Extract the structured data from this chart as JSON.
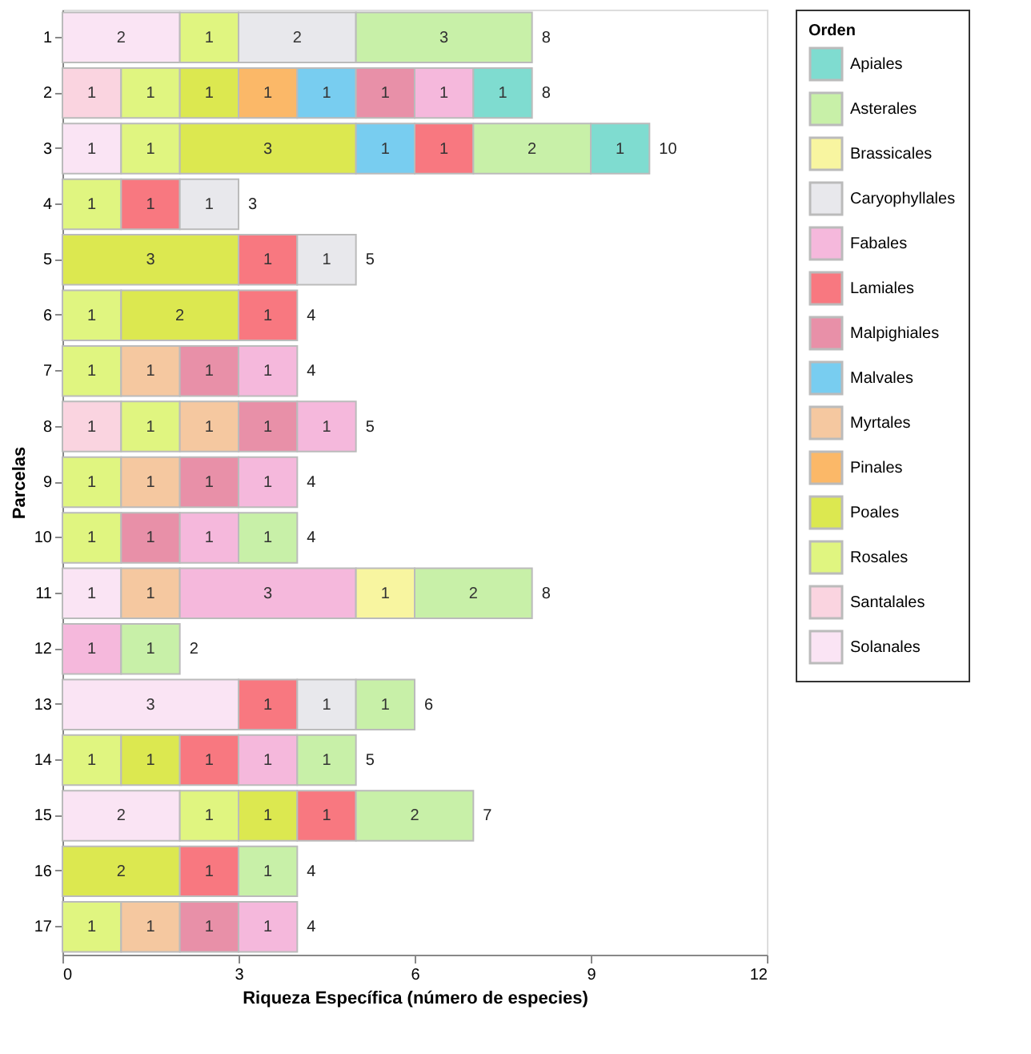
{
  "chart_data": {
    "type": "bar",
    "orientation": "horizontal",
    "stacked": true,
    "xlabel": "Riqueza Específica (número de especies)",
    "ylabel": "Parcelas",
    "legend_title": "Orden",
    "legend": "right",
    "data_labels": true,
    "xlim": [
      0,
      12
    ],
    "xticks": [
      0,
      3,
      6,
      9,
      12
    ],
    "categories": [
      "1",
      "2",
      "3",
      "4",
      "5",
      "6",
      "7",
      "8",
      "9",
      "10",
      "11",
      "12",
      "13",
      "14",
      "15",
      "16",
      "17"
    ],
    "totals": [
      "8",
      "8",
      "10",
      "3",
      "5",
      "4",
      "4",
      "5",
      "4",
      "4",
      "8",
      "2",
      "6",
      "5",
      "7",
      "4",
      "4"
    ],
    "series": [
      {
        "name": "Solanales",
        "color": "#fae4f4",
        "values": [
          2,
          null,
          1,
          null,
          null,
          null,
          null,
          null,
          null,
          null,
          1,
          null,
          3,
          null,
          2,
          null,
          null
        ]
      },
      {
        "name": "Santalales",
        "color": "#fad4e0",
        "values": [
          null,
          1,
          null,
          null,
          null,
          null,
          null,
          1,
          null,
          null,
          null,
          null,
          null,
          null,
          null,
          null,
          null
        ]
      },
      {
        "name": "Rosales",
        "color": "#e0f580",
        "values": [
          1,
          1,
          1,
          1,
          null,
          1,
          1,
          1,
          1,
          1,
          null,
          null,
          null,
          1,
          1,
          null,
          1
        ]
      },
      {
        "name": "Poales",
        "color": "#dce850",
        "values": [
          null,
          1,
          3,
          null,
          3,
          2,
          null,
          null,
          null,
          null,
          null,
          null,
          null,
          1,
          1,
          2,
          null
        ]
      },
      {
        "name": "Pinales",
        "color": "#fbb868",
        "values": [
          null,
          1,
          null,
          null,
          null,
          null,
          null,
          null,
          null,
          null,
          null,
          null,
          null,
          null,
          null,
          null,
          null
        ]
      },
      {
        "name": "Myrtales",
        "color": "#f5c8a0",
        "values": [
          null,
          null,
          null,
          null,
          null,
          null,
          1,
          1,
          1,
          null,
          1,
          null,
          null,
          null,
          null,
          null,
          1
        ]
      },
      {
        "name": "Malvales",
        "color": "#78cdf0",
        "values": [
          null,
          1,
          1,
          null,
          null,
          null,
          null,
          null,
          null,
          null,
          null,
          null,
          null,
          null,
          null,
          null,
          null
        ]
      },
      {
        "name": "Malpighiales",
        "color": "#e890a8",
        "values": [
          null,
          1,
          null,
          null,
          null,
          null,
          1,
          1,
          1,
          1,
          null,
          null,
          null,
          null,
          null,
          null,
          1
        ]
      },
      {
        "name": "Lamiales",
        "color": "#f87880",
        "values": [
          null,
          null,
          1,
          1,
          1,
          1,
          null,
          null,
          null,
          null,
          null,
          null,
          1,
          1,
          1,
          1,
          null
        ]
      },
      {
        "name": "Fabales",
        "color": "#f5b8dc",
        "values": [
          null,
          1,
          null,
          null,
          null,
          null,
          1,
          1,
          1,
          1,
          3,
          1,
          null,
          1,
          null,
          null,
          1
        ]
      },
      {
        "name": "Caryophyllales",
        "color": "#e8e8ec",
        "values": [
          2,
          null,
          null,
          1,
          1,
          null,
          null,
          null,
          null,
          null,
          null,
          null,
          1,
          null,
          null,
          null,
          null
        ]
      },
      {
        "name": "Brassicales",
        "color": "#f8f5a0",
        "values": [
          null,
          null,
          null,
          null,
          null,
          null,
          null,
          null,
          null,
          null,
          1,
          null,
          null,
          null,
          null,
          null,
          null
        ]
      },
      {
        "name": "Asterales",
        "color": "#c8f0a8",
        "values": [
          3,
          null,
          2,
          null,
          null,
          null,
          null,
          null,
          null,
          1,
          2,
          1,
          1,
          1,
          2,
          1,
          null
        ]
      },
      {
        "name": "Apiales",
        "color": "#7fdcd0",
        "values": [
          null,
          1,
          1,
          null,
          null,
          null,
          null,
          null,
          null,
          null,
          null,
          null,
          null,
          null,
          null,
          null,
          null
        ]
      }
    ]
  }
}
